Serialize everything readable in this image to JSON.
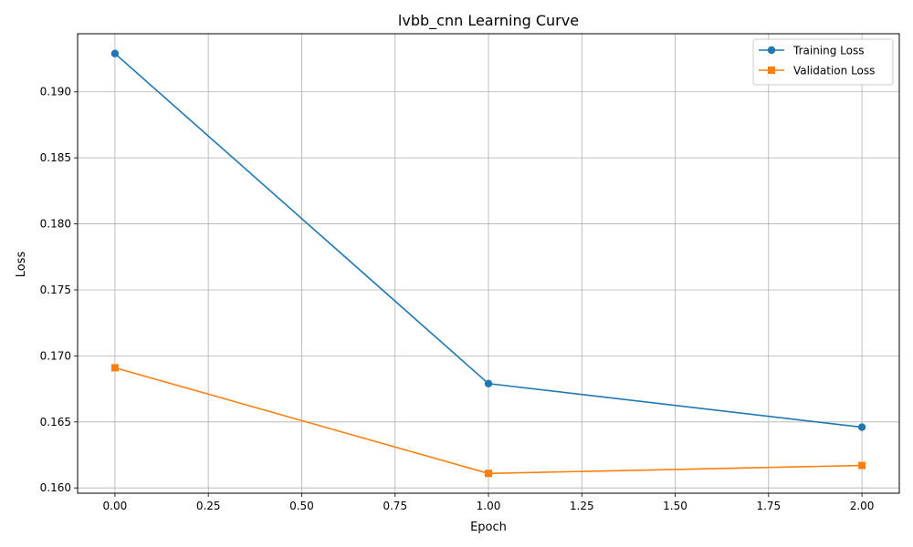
{
  "chart_data": {
    "type": "line",
    "title": "lvbb_cnn Learning Curve",
    "xlabel": "Epoch",
    "ylabel": "Loss",
    "xlim": [
      -0.1,
      2.1
    ],
    "ylim": [
      0.1596,
      0.1944
    ],
    "xticks": [
      0.0,
      0.25,
      0.5,
      0.75,
      1.0,
      1.25,
      1.5,
      1.75,
      2.0
    ],
    "xtick_labels": [
      "0.00",
      "0.25",
      "0.50",
      "0.75",
      "1.00",
      "1.25",
      "1.50",
      "1.75",
      "2.00"
    ],
    "yticks": [
      0.16,
      0.165,
      0.17,
      0.175,
      0.18,
      0.185,
      0.19
    ],
    "ytick_labels": [
      "0.160",
      "0.165",
      "0.170",
      "0.175",
      "0.180",
      "0.185",
      "0.190"
    ],
    "grid": true,
    "legend_position": "top-right",
    "x": [
      0,
      1,
      2
    ],
    "series": [
      {
        "name": "Training Loss",
        "values": [
          0.1929,
          0.1679,
          0.1646
        ],
        "color": "#1f77b4",
        "marker": "circle"
      },
      {
        "name": "Validation Loss",
        "values": [
          0.1691,
          0.1611,
          0.1617
        ],
        "color": "#ff7f0e",
        "marker": "square"
      }
    ]
  }
}
